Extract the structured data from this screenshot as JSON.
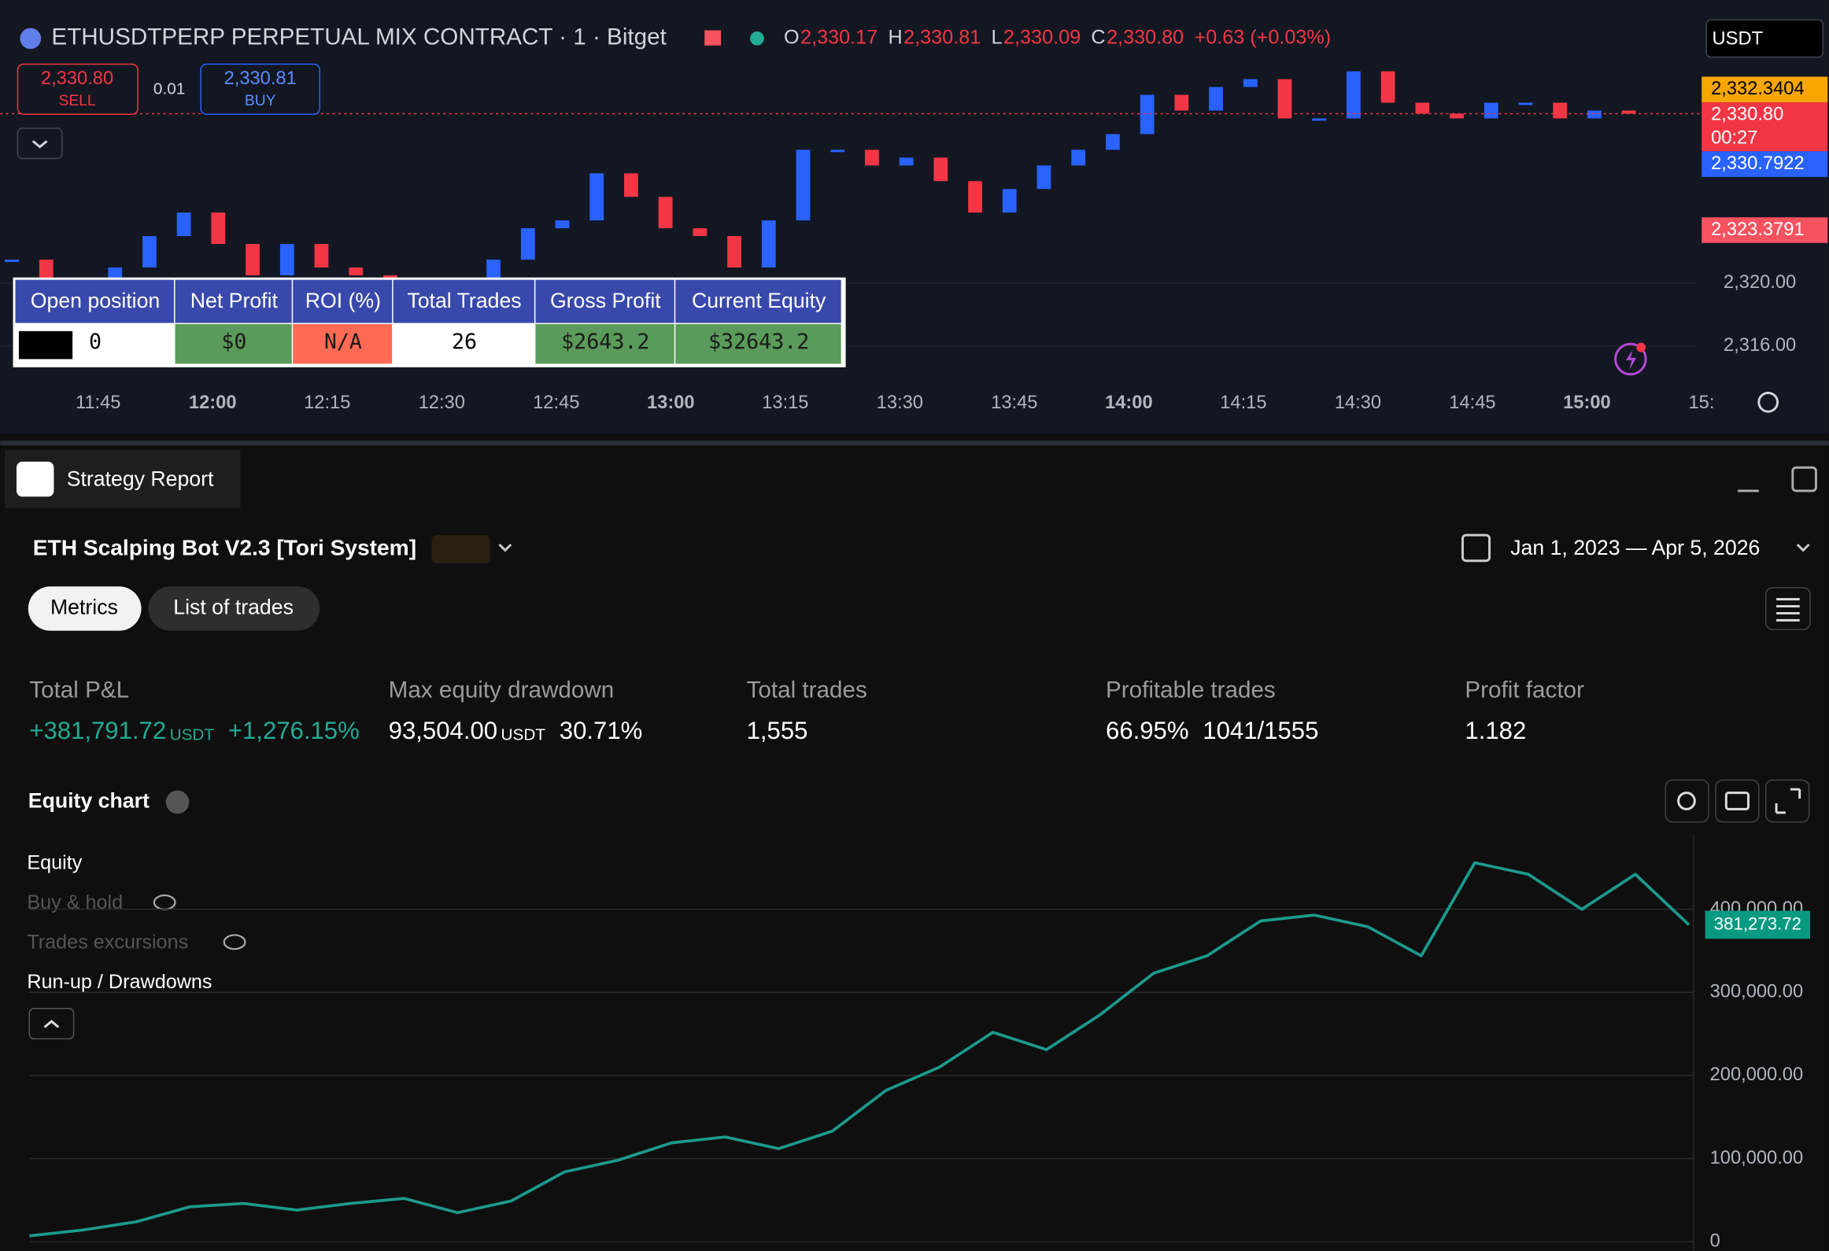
{
  "header": {
    "symbol": "ETHUSDTPERP PERPETUAL MIX CONTRACT · 1 · Bitget",
    "ohlc": [
      {
        "key": "O",
        "value": "2,330.17"
      },
      {
        "key": "H",
        "value": "2,330.81"
      },
      {
        "key": "L",
        "value": "2,330.09"
      },
      {
        "key": "C",
        "value": "2,330.80"
      }
    ],
    "change": "+0.63 (+0.03%)",
    "currency": "USDT"
  },
  "order_buttons": {
    "sell_price": "2,330.80",
    "sell_label": "SELL",
    "spread": "0.01",
    "buy_price": "2,330.81",
    "buy_label": "BUY"
  },
  "stats_table": {
    "headers": [
      "Open position",
      "Net Profit",
      "ROI (%)",
      "Total Trades",
      "Gross Profit",
      "Current Equity"
    ],
    "cells": [
      "0",
      "$0",
      "N/A",
      "26",
      "$2643.2",
      "$32643.2"
    ]
  },
  "countdown": "00:27",
  "report": {
    "tab": "Strategy Report",
    "strategy": "ETH Scalping Bot V2.3 [Tori System]",
    "date_range": "Jan 1, 2023 — Apr 5, 2026",
    "tabs": [
      "Metrics",
      "List of trades"
    ],
    "metrics": [
      {
        "label": "Total P&L",
        "value": "+381,791.72",
        "unit": "USDT",
        "extra": "+1,276.15%"
      },
      {
        "label": "Max equity drawdown",
        "value": "93,504.00",
        "unit": "USDT",
        "extra": "30.71%"
      },
      {
        "label": "Total trades",
        "value": "1,555"
      },
      {
        "label": "Profitable trades",
        "value": "66.95%",
        "extra": "1041/1555"
      },
      {
        "label": "Profit factor",
        "value": "1.182"
      }
    ],
    "equity_title": "Equity chart",
    "legend": [
      "Buy & hold",
      "Trades excursions",
      "Run-up / Drawdowns"
    ]
  },
  "chart_data": [
    {
      "type": "candlestick",
      "values": [
        2321.5,
        2319.5,
        2319,
        2321,
        2323,
        2324.5,
        2322.5,
        2320.5,
        2322.5,
        2321,
        2320.5,
        2317.5,
        2319.5,
        2320,
        2321.5,
        2323.5,
        2324,
        2327,
        2325.5,
        2323.5,
        2323,
        2321,
        2324,
        2328.5,
        2328.5,
        2327.5,
        2328,
        2326.5,
        2324.5,
        2326,
        2327.5,
        2328.5,
        2329.5,
        2332,
        2331,
        2332.5,
        2333,
        2330.5,
        2330.5,
        2333.5,
        2331.5,
        2330.8,
        2330.5,
        2331.5,
        2331.5,
        2330.5,
        2331,
        2330.8
      ],
      "x_labels": [
        "11:45",
        "12:00",
        "12:15",
        "12:30",
        "12:45",
        "13:00",
        "13:15",
        "13:30",
        "13:45",
        "14:00",
        "14:15",
        "14:30",
        "14:45",
        "15:00",
        "15:"
      ],
      "ylim": [
        2313.9,
        2337.3
      ],
      "yticks": [
        {
          "value": 2316,
          "label": "2,316.00"
        },
        {
          "value": 2320,
          "label": "2,320.00"
        }
      ],
      "price_labels": [
        {
          "value": 2332.3404,
          "label": "2,332.3404",
          "color": "#f7a600"
        },
        {
          "value": 2330.8,
          "label": "2,330.80",
          "color": "#f23645"
        },
        {
          "value": 2330.7922,
          "label": "2,330.7922",
          "color": "#2962ff"
        },
        {
          "value": 2323.3791,
          "label": "2,323.3791",
          "color": "#f7525f"
        }
      ],
      "up_color": "#2962ff",
      "down_color": "#f23645"
    },
    {
      "type": "line",
      "series": [
        {
          "name": "Equity",
          "color": "#1c9a8c",
          "values": [
            7000,
            14000,
            24000,
            42000,
            46000,
            38000,
            46000,
            52000,
            35000,
            49000,
            84000,
            98000,
            119000,
            126000,
            112000,
            133000,
            182000,
            210000,
            252000,
            231000,
            273000,
            323000,
            344000,
            386000,
            393000,
            379000,
            344000,
            456000,
            442000,
            400000,
            442000,
            381273.72
          ]
        }
      ],
      "last_value": {
        "value": 381273.72,
        "label": "381,273.72"
      },
      "ylim": [
        0,
        484000
      ],
      "yticks": [
        0,
        {
          "value": 100000,
          "label": "100,000.00"
        },
        {
          "value": 200000,
          "label": "200,000.00"
        },
        {
          "value": 300000,
          "label": "300,000.00"
        },
        {
          "value": 400000,
          "label": "400,000.00"
        }
      ],
      "grid": true
    }
  ]
}
